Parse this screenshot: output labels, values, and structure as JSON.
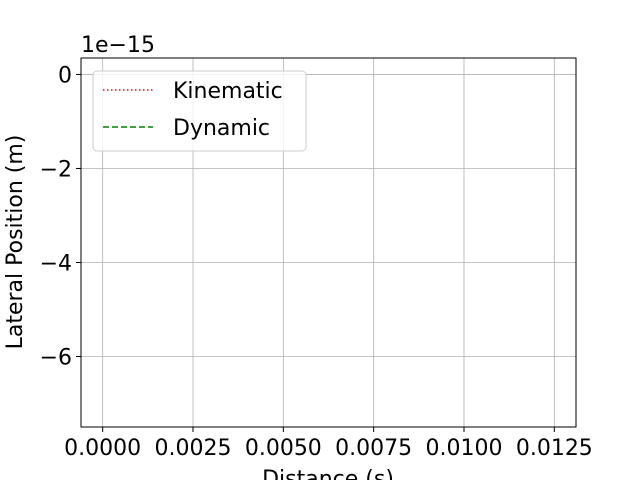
{
  "chart_data": {
    "type": "line",
    "title": "",
    "xlabel": "Distance (s)",
    "ylabel": "Lateral Position (m)",
    "y_offset_text": "1e−15",
    "x_ticks": [
      "0.0000",
      "0.0025",
      "0.0050",
      "0.0075",
      "0.0100",
      "0.0125"
    ],
    "y_ticks": [
      "0",
      "−2",
      "−4",
      "−6"
    ],
    "xlim": [
      -0.0006,
      0.0131
    ],
    "ylim": [
      -7.5,
      0.35
    ],
    "y_scale_factor": "1e-15",
    "grid": true,
    "legend_position": "top-left",
    "series": [
      {
        "name": "Kinematic",
        "color": "#ff0000",
        "linestyle": "dotted",
        "x": [],
        "y": []
      },
      {
        "name": "Dynamic",
        "color": "#008000",
        "linestyle": "dashed",
        "x": [],
        "y": []
      }
    ]
  }
}
